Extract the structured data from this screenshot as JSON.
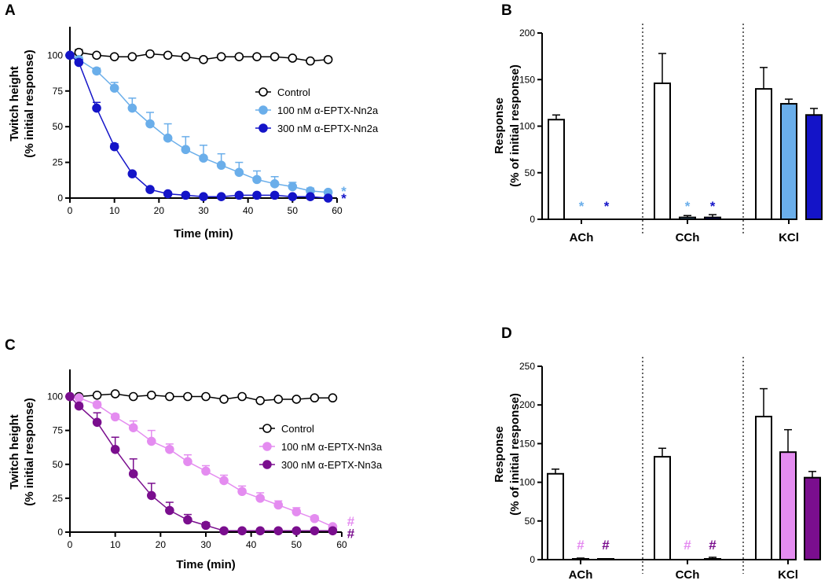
{
  "colors": {
    "control": "#000000",
    "nn2a_100": "#6aaeea",
    "nn2a_300": "#1414c8",
    "nn3a_100": "#e48cf0",
    "nn3a_300": "#7a0e8e"
  },
  "chart_data": [
    {
      "id": "A",
      "type": "line",
      "panel_label": "A",
      "xlabel": "Time (min)",
      "ylabel": [
        "Twitch height",
        "(% initial response)"
      ],
      "xlim": [
        0,
        60
      ],
      "ylim": [
        0,
        120
      ],
      "xticks": [
        0,
        10,
        20,
        30,
        40,
        50,
        60
      ],
      "yticks": [
        0,
        25,
        50,
        75,
        100
      ],
      "series": [
        {
          "name": "Control",
          "key": "control",
          "marker": "open",
          "x": [
            0,
            2,
            6,
            10,
            14,
            18,
            22,
            26,
            30,
            34,
            38,
            42,
            46,
            50,
            54,
            58
          ],
          "y": [
            100,
            102,
            100,
            99,
            99,
            101,
            100,
            99,
            97,
            99,
            99,
            99,
            99,
            98,
            96,
            97
          ],
          "err": [
            0,
            2,
            1,
            1,
            1,
            1,
            1,
            1,
            1,
            1,
            1,
            1,
            1,
            1,
            1,
            1
          ]
        },
        {
          "name": "100 nM α-EPTX-Nn2a",
          "key": "nn2a_100",
          "marker": "filled",
          "x": [
            0,
            2,
            6,
            10,
            14,
            18,
            22,
            26,
            30,
            34,
            38,
            42,
            46,
            50,
            54,
            58
          ],
          "y": [
            100,
            97,
            89,
            77,
            63,
            52,
            42,
            34,
            28,
            23,
            18,
            13,
            10,
            8,
            5,
            4
          ],
          "err": [
            0,
            2,
            2,
            4,
            7,
            8,
            10,
            9,
            9,
            8,
            7,
            6,
            5,
            3,
            2,
            1
          ]
        },
        {
          "name": "300 nM α-EPTX-Nn2a",
          "key": "nn2a_300",
          "marker": "filled",
          "x": [
            0,
            2,
            6,
            10,
            14,
            18,
            22,
            26,
            30,
            34,
            38,
            42,
            46,
            50,
            54,
            58
          ],
          "y": [
            100,
            95,
            63,
            36,
            17,
            6,
            3,
            2,
            1,
            1,
            2,
            2,
            2,
            1,
            1,
            0
          ],
          "err": [
            0,
            2,
            4,
            2,
            1,
            1,
            1,
            1,
            1,
            1,
            1,
            1,
            1,
            1,
            1,
            1
          ]
        }
      ],
      "annotations": [
        {
          "text": "*",
          "key": "nn2a_100",
          "x": 61.5,
          "y": 5
        },
        {
          "text": "*",
          "key": "nn2a_300",
          "x": 61.5,
          "y": 0
        }
      ]
    },
    {
      "id": "B",
      "type": "bar",
      "panel_label": "B",
      "ylabel": [
        "Response",
        "(% of initial response)"
      ],
      "ylim": [
        0,
        200
      ],
      "yticks": [
        0,
        50,
        100,
        150,
        200
      ],
      "categories": [
        "ACh",
        "CCh",
        "KCl"
      ],
      "series": [
        {
          "name": "Control",
          "key": "control",
          "values": [
            107,
            146,
            140
          ],
          "err": [
            5,
            32,
            23
          ]
        },
        {
          "name": "100 nM α-EPTX-Nn2a",
          "key": "nn2a_100",
          "values": [
            0,
            2,
            124
          ],
          "err": [
            0,
            2,
            5
          ]
        },
        {
          "name": "300 nM α-EPTX-Nn2a",
          "key": "nn2a_300",
          "values": [
            0,
            2,
            112
          ],
          "err": [
            0,
            3,
            7
          ]
        }
      ],
      "annotations": [
        {
          "text": "*",
          "key": "nn2a_100",
          "group": 0,
          "bar": 1
        },
        {
          "text": "*",
          "key": "nn2a_300",
          "group": 0,
          "bar": 2
        },
        {
          "text": "*",
          "key": "nn2a_100",
          "group": 1,
          "bar": 1
        },
        {
          "text": "*",
          "key": "nn2a_300",
          "group": 1,
          "bar": 2
        }
      ]
    },
    {
      "id": "C",
      "type": "line",
      "panel_label": "C",
      "xlabel": "Time (min)",
      "ylabel": [
        "Twitch height",
        "(% initial response)"
      ],
      "xlim": [
        0,
        60
      ],
      "ylim": [
        0,
        120
      ],
      "xticks": [
        0,
        10,
        20,
        30,
        40,
        50,
        60
      ],
      "yticks": [
        0,
        25,
        50,
        75,
        100
      ],
      "series": [
        {
          "name": "Control",
          "key": "control",
          "marker": "open",
          "x": [
            0,
            2,
            6,
            10,
            14,
            18,
            22,
            26,
            30,
            34,
            38,
            42,
            46,
            50,
            54,
            58
          ],
          "y": [
            100,
            100,
            101,
            102,
            100,
            101,
            100,
            100,
            100,
            98,
            100,
            97,
            98,
            98,
            99,
            99
          ],
          "err": [
            0,
            1,
            1,
            1,
            1,
            1,
            1,
            1,
            1,
            1,
            1,
            1,
            1,
            1,
            1,
            1
          ]
        },
        {
          "name": "100 nM α-EPTX-Nn3a",
          "key": "nn3a_100",
          "marker": "filled",
          "x": [
            0,
            2,
            6,
            10,
            14,
            18,
            22,
            26,
            30,
            34,
            38,
            42,
            46,
            50,
            54,
            58
          ],
          "y": [
            100,
            99,
            94,
            85,
            77,
            67,
            61,
            52,
            45,
            38,
            30,
            25,
            20,
            15,
            10,
            4
          ],
          "err": [
            0,
            1,
            2,
            2,
            5,
            8,
            4,
            5,
            4,
            4,
            4,
            4,
            3,
            3,
            2,
            1
          ]
        },
        {
          "name": "300 nM α-EPTX-Nn3a",
          "key": "nn3a_300",
          "marker": "filled",
          "x": [
            0,
            2,
            6,
            10,
            14,
            18,
            22,
            26,
            30,
            34,
            38,
            42,
            46,
            50,
            54,
            58
          ],
          "y": [
            100,
            93,
            81,
            61,
            43,
            27,
            16,
            9,
            5,
            1,
            1,
            1,
            1,
            1,
            1,
            1
          ],
          "err": [
            0,
            2,
            7,
            9,
            11,
            9,
            6,
            4,
            2,
            1,
            1,
            1,
            1,
            1,
            1,
            1
          ]
        }
      ],
      "annotations": [
        {
          "text": "#",
          "key": "nn3a_100",
          "x": 62,
          "y": 8
        },
        {
          "text": "#",
          "key": "nn3a_300",
          "x": 62,
          "y": -1
        }
      ]
    },
    {
      "id": "D",
      "type": "bar",
      "panel_label": "D",
      "ylabel": [
        "Response",
        "(% of initial response)"
      ],
      "ylim": [
        0,
        250
      ],
      "yticks": [
        0,
        50,
        100,
        150,
        200,
        250
      ],
      "categories": [
        "ACh",
        "CCh",
        "KCl"
      ],
      "series": [
        {
          "name": "Control",
          "key": "control",
          "values": [
            111,
            133,
            185
          ],
          "err": [
            6,
            11,
            36
          ]
        },
        {
          "name": "100 nM α-EPTX-Nn3a",
          "key": "nn3a_100",
          "values": [
            1,
            0,
            139
          ],
          "err": [
            1,
            0,
            29
          ]
        },
        {
          "name": "300 nM α-EPTX-Nn3a",
          "key": "nn3a_300",
          "values": [
            1,
            1,
            106
          ],
          "err": [
            0,
            2,
            8
          ]
        }
      ],
      "annotations": [
        {
          "text": "#",
          "key": "nn3a_100",
          "group": 0,
          "bar": 1
        },
        {
          "text": "#",
          "key": "nn3a_300",
          "group": 0,
          "bar": 2
        },
        {
          "text": "#",
          "key": "nn3a_100",
          "group": 1,
          "bar": 1
        },
        {
          "text": "#",
          "key": "nn3a_300",
          "group": 1,
          "bar": 2
        }
      ]
    }
  ]
}
